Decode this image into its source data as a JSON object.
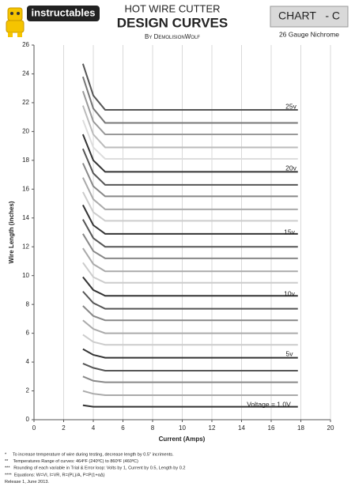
{
  "header": {
    "logo": "instructables",
    "title": "HOT WIRE CUTTER",
    "subtitle": "DESIGN CURVES",
    "byline": "By DemolisionWolf",
    "chart_id": "CHART   - C",
    "gauge": "26 Gauge Nichrome"
  },
  "chart_data": {
    "type": "line",
    "x_label": "Current (Amps)",
    "y_label": "Wire Length (inches)",
    "x": [
      3.3,
      4.0,
      4.8,
      17.8
    ],
    "series": [
      {
        "color": "#333333",
        "values": [
          1.0,
          0.9,
          0.9,
          0.9
        ]
      },
      {
        "color": "#aaaaaa",
        "values": [
          2.0,
          1.8,
          1.7,
          1.7
        ]
      },
      {
        "color": "#888888",
        "values": [
          3.0,
          2.7,
          2.6,
          2.6
        ]
      },
      {
        "color": "#555555",
        "values": [
          3.9,
          3.6,
          3.4,
          3.4
        ]
      },
      {
        "color": "#333333",
        "values": [
          4.9,
          4.5,
          4.3,
          4.3
        ]
      },
      {
        "color": "#cccccc",
        "values": [
          5.9,
          5.4,
          5.2,
          5.2
        ]
      },
      {
        "color": "#aaaaaa",
        "values": [
          6.9,
          6.3,
          6.0,
          6.0
        ]
      },
      {
        "color": "#888888",
        "values": [
          7.9,
          7.2,
          6.9,
          6.9
        ]
      },
      {
        "color": "#555555",
        "values": [
          8.9,
          8.1,
          7.7,
          7.7
        ]
      },
      {
        "color": "#333333",
        "values": [
          9.9,
          9.0,
          8.6,
          8.6
        ]
      },
      {
        "color": "#cccccc",
        "values": [
          10.9,
          9.9,
          9.5,
          9.5
        ]
      },
      {
        "color": "#aaaaaa",
        "values": [
          11.9,
          10.8,
          10.3,
          10.3
        ]
      },
      {
        "color": "#888888",
        "values": [
          12.9,
          11.7,
          11.2,
          11.2
        ]
      },
      {
        "color": "#555555",
        "values": [
          13.9,
          12.6,
          12.0,
          12.0
        ]
      },
      {
        "color": "#333333",
        "values": [
          14.9,
          13.5,
          12.9,
          12.9
        ]
      },
      {
        "color": "#cccccc",
        "values": [
          15.8,
          14.4,
          13.8,
          13.8
        ]
      },
      {
        "color": "#aaaaaa",
        "values": [
          16.8,
          15.3,
          14.6,
          14.6
        ]
      },
      {
        "color": "#888888",
        "values": [
          17.8,
          16.2,
          15.5,
          15.5
        ]
      },
      {
        "color": "#555555",
        "values": [
          18.8,
          17.1,
          16.3,
          16.3
        ]
      },
      {
        "color": "#333333",
        "values": [
          19.8,
          18.0,
          17.2,
          17.2
        ]
      },
      {
        "color": "#dddddd",
        "values": [
          20.8,
          18.9,
          18.1,
          18.1
        ]
      },
      {
        "color": "#bbbbbb",
        "values": [
          21.8,
          19.8,
          18.9,
          18.9
        ]
      },
      {
        "color": "#999999",
        "values": [
          22.8,
          20.7,
          19.8,
          19.8
        ]
      },
      {
        "color": "#777777",
        "values": [
          23.8,
          21.6,
          20.6,
          20.6
        ]
      },
      {
        "color": "#555555",
        "values": [
          24.7,
          22.5,
          21.5,
          21.5
        ]
      }
    ],
    "annotations": [
      "25v",
      "20v",
      "15v",
      "10v",
      "5v",
      "Voltage = 1.0V"
    ],
    "xlim": [
      0,
      20
    ],
    "xticks": [
      0,
      2,
      4,
      6,
      8,
      10,
      12,
      14,
      16,
      18,
      20
    ],
    "ylim": [
      0,
      26
    ],
    "yticks": [
      0,
      2,
      4,
      6,
      8,
      10,
      12,
      14,
      16,
      18,
      20,
      22,
      24,
      26
    ],
    "grid": true
  },
  "footnotes": [
    "*     To increase temperature of wire during testing, decrease length by 0.5\" incriments.",
    "**    Temperatures Range of curves: 464ºF (240ºC) to 860ºF (460ºC)",
    "***   Rounding of each variable in Trial & Error loop: Volts by 1, Current by 0.5, Length by 0.2",
    "****  Equations: W=VI, I=VR, R=(PL)/A, P=P(1+αΔ)",
    "Release 1, June 2013."
  ]
}
